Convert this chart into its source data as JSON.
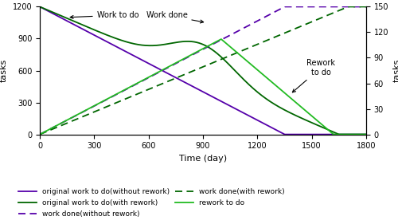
{
  "xlabel": "Time (day)",
  "ylabel_left": "tasks",
  "ylabel_right": "tasks",
  "xlim": [
    0,
    1800
  ],
  "ylim_left": [
    0,
    1200
  ],
  "ylim_right": [
    0,
    150
  ],
  "xticks": [
    0,
    300,
    600,
    900,
    1200,
    1500,
    1800
  ],
  "yticks_left": [
    0,
    300,
    600,
    900,
    1200
  ],
  "yticks_right": [
    0,
    30,
    60,
    90,
    120,
    150
  ],
  "color_purple": "#5500aa",
  "color_dark_green": "#006600",
  "color_bright_green": "#22bb22",
  "lw": 1.3
}
